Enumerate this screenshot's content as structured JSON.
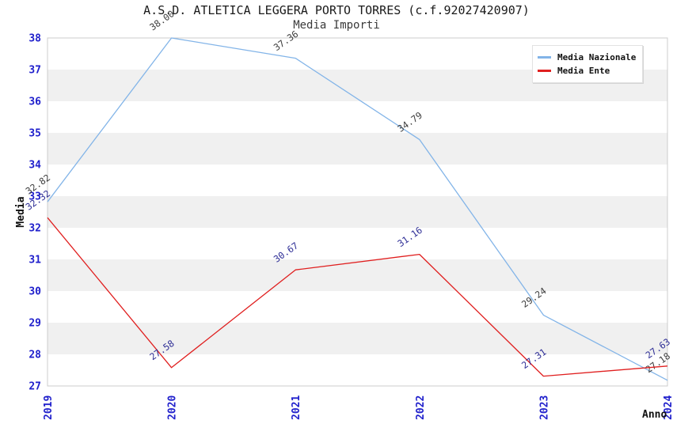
{
  "header": {
    "title": "A.S.D. ATLETICA LEGGERA PORTO TORRES (c.f.92027420907)",
    "subtitle": "Media Importi"
  },
  "chart_data": {
    "type": "line",
    "x": [
      "2019",
      "2020",
      "2021",
      "2022",
      "2023",
      "2024"
    ],
    "series": [
      {
        "name": "Media Nazionale",
        "color": "#82b4e8",
        "label_color": "#3d3d3d",
        "values": [
          32.82,
          38.0,
          37.36,
          34.79,
          29.24,
          27.18
        ],
        "point_labels": [
          "32.82",
          "38.00",
          "37.36",
          "34.79",
          "29.24",
          "27.18"
        ]
      },
      {
        "name": "Media Ente",
        "color": "#e01f1f",
        "label_color": "#2e2e96",
        "values": [
          32.32,
          27.58,
          30.67,
          31.16,
          27.31,
          27.63
        ],
        "point_labels": [
          "32.32",
          "27.58",
          "30.67",
          "31.16",
          "27.31",
          "27.63"
        ]
      }
    ],
    "xlabel": "Anno",
    "ylabel": "Media",
    "ylim": [
      27,
      38
    ],
    "y_ticks": [
      38,
      37,
      36,
      35,
      34,
      33,
      32,
      31,
      30,
      29,
      28,
      27
    ],
    "grid": "alternating-horizontal-bands",
    "band_colors": [
      "#ffffff",
      "#f0f0f0"
    ],
    "plot_border_color": "#cccccc",
    "axis_tick_color": "#2020cc",
    "axis_title_color": "#111111",
    "legend_position": "top-right"
  }
}
